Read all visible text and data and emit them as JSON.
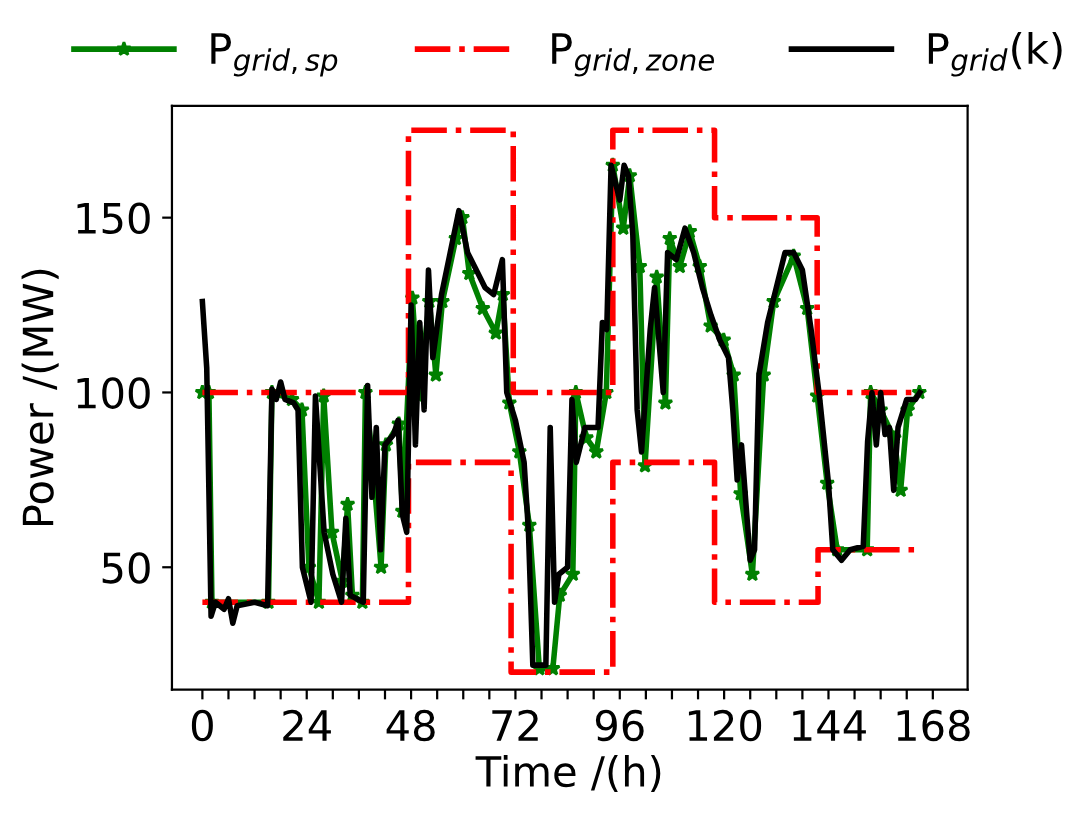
{
  "chart_data": {
    "type": "line",
    "xlabel": "Time /(h)",
    "ylabel": "Power /(MW)",
    "xlim": [
      -7,
      176
    ],
    "ylim": [
      15,
      182
    ],
    "xticks": [
      0,
      {
        "value": 6,
        "label": null
      },
      {
        "value": 12,
        "label": null
      },
      {
        "value": 18,
        "label": null
      },
      24,
      {
        "value": 30,
        "label": null
      },
      {
        "value": 36,
        "label": null
      },
      {
        "value": 42,
        "label": null
      },
      48,
      {
        "value": 54,
        "label": null
      },
      {
        "value": 60,
        "label": null
      },
      {
        "value": 66,
        "label": null
      },
      72,
      {
        "value": 78,
        "label": null
      },
      {
        "value": 84,
        "label": null
      },
      {
        "value": 90,
        "label": null
      },
      96,
      {
        "value": 102,
        "label": null
      },
      {
        "value": 108,
        "label": null
      },
      {
        "value": 114,
        "label": null
      },
      120,
      {
        "value": 126,
        "label": null
      },
      {
        "value": 132,
        "label": null
      },
      {
        "value": 138,
        "label": null
      },
      144,
      {
        "value": 150,
        "label": null
      },
      {
        "value": 156,
        "label": null
      },
      {
        "value": 162,
        "label": null
      },
      168
    ],
    "yticks": [
      50,
      100,
      150
    ],
    "grid": false,
    "legend": "top",
    "series": [
      {
        "name": "P$_{grid,sp}$",
        "color": "#008000",
        "marker": "star",
        "line_style": "solid",
        "x": [
          0,
          1.5,
          2.2,
          15.2,
          16,
          20.6,
          22.9,
          24.5,
          26.8,
          27.9,
          29.8,
          32.2,
          33.4,
          34.5,
          36.8,
          37.5,
          39.1,
          41.1,
          42.2,
          45.2,
          46,
          48.3,
          49.8,
          52.2,
          53.7,
          55.2,
          58.3,
          59.8,
          61.4,
          64.5,
          67.5,
          69.1,
          70.6,
          72.9,
          75.2,
          77.5,
          80.6,
          82.2,
          85.2,
          85.9,
          88.3,
          90.6,
          92.9,
          94.4,
          96.8,
          98.3,
          100.6,
          101.8,
          104.5,
          106.5,
          107.5,
          109.8,
          112.1,
          114.4,
          116.9,
          119.9,
          122.2,
          123.8,
          126.5,
          129.1,
          131.4,
          136,
          139.1,
          141.4,
          143.7,
          146,
          152.9,
          153.7,
          156,
          159.1,
          160.6,
          162.2,
          164.9
        ],
        "values": [
          100,
          100,
          40,
          40,
          100,
          98,
          95,
          50,
          40,
          99,
          60,
          46,
          68,
          42,
          40,
          100,
          81,
          50,
          85,
          91,
          66,
          127,
          99,
          126,
          105,
          126,
          144,
          150,
          134,
          124,
          117,
          128,
          97,
          83,
          62,
          21,
          21,
          42,
          48,
          100,
          87,
          83,
          100,
          165,
          147,
          162,
          136,
          79,
          133,
          97,
          144,
          136,
          146,
          136,
          119,
          115,
          105,
          71,
          48,
          105,
          126,
          139,
          124,
          99,
          74,
          55,
          55,
          100,
          95,
          87,
          72,
          95,
          100
        ]
      },
      {
        "name": "P$_{grid,zone}$",
        "color": "#ff0000",
        "marker": "none",
        "line_style": "dashdot",
        "x": [
          0,
          47.4,
          47.4,
          71.5,
          71.5,
          94.4,
          94.4,
          117.8,
          117.8,
          141.4,
          141.4,
          165
        ],
        "values": [
          100,
          100,
          175,
          175,
          100,
          100,
          175,
          175,
          150,
          150,
          100,
          100
        ]
      },
      {
        "color": "#ff0000",
        "marker": "none",
        "line_style": "dashdot",
        "x": [
          0,
          47.4,
          47.4,
          71,
          71,
          94.4,
          94.4,
          117.8,
          117.8,
          141.6,
          141.6,
          165
        ],
        "values": [
          40,
          40,
          80,
          80,
          20,
          20,
          80,
          80,
          40,
          40,
          55,
          55
        ]
      },
      {
        "name": "P$_{grid}$(k)",
        "color": "#000000",
        "marker": "none",
        "line_style": "solid",
        "x": [
          0,
          1,
          2,
          3,
          5,
          6,
          7,
          8,
          12,
          15,
          16,
          17,
          18,
          19,
          21,
          22,
          23,
          25,
          26,
          28,
          30,
          32,
          33,
          34,
          37,
          38,
          39,
          40,
          41,
          42,
          44,
          45,
          46,
          47,
          48,
          49,
          50,
          51,
          52,
          53,
          55,
          57,
          59,
          61,
          63,
          65,
          67,
          69,
          70,
          72,
          74,
          75,
          76,
          79,
          80,
          81,
          82,
          84,
          85,
          86,
          88,
          91,
          92,
          93,
          94,
          96,
          97,
          98,
          99,
          100,
          101,
          103,
          104,
          106,
          107,
          109,
          111,
          113,
          115,
          117,
          119,
          121,
          122,
          123,
          124,
          126,
          127,
          128,
          130,
          132,
          134,
          136,
          138,
          140,
          141,
          142,
          144,
          145,
          147,
          149,
          152,
          153,
          154,
          155,
          156,
          157,
          158,
          159,
          160,
          162,
          164,
          165
        ],
        "values": [
          126,
          107,
          36,
          40,
          38,
          41,
          34,
          39,
          40,
          39,
          101,
          98,
          103,
          98,
          97,
          95,
          50,
          40,
          99,
          60,
          48,
          40,
          64,
          42,
          40,
          102,
          70,
          90,
          55,
          85,
          88,
          92,
          65,
          60,
          125,
          85,
          120,
          95,
          135,
          110,
          128,
          140,
          152,
          140,
          135,
          130,
          128,
          138,
          100,
          92,
          80,
          60,
          22,
          22,
          90,
          40,
          48,
          50,
          98,
          80,
          90,
          90,
          120,
          118,
          165,
          155,
          165,
          162,
          145,
          95,
          83,
          118,
          130,
          100,
          140,
          138,
          147,
          140,
          130,
          122,
          115,
          110,
          95,
          75,
          85,
          52,
          55,
          105,
          120,
          130,
          140,
          140,
          135,
          118,
          108,
          98,
          74,
          55,
          52,
          55,
          56,
          86,
          100,
          85,
          100,
          88,
          90,
          72,
          90,
          98,
          98,
          100
        ]
      }
    ]
  }
}
